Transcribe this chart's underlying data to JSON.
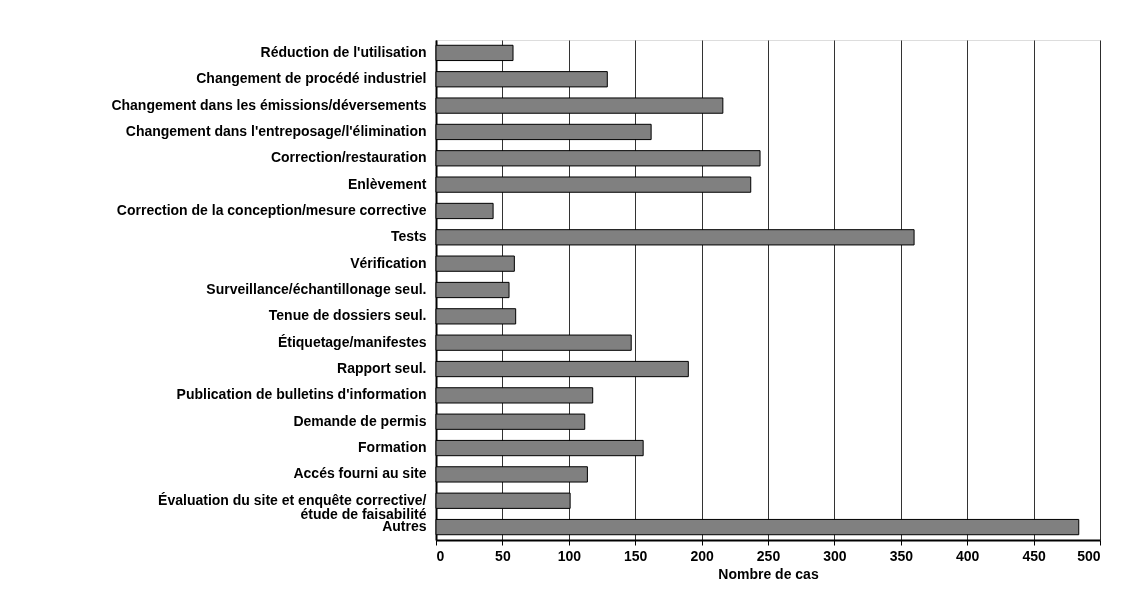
{
  "chart_data": {
    "type": "bar",
    "orientation": "horizontal",
    "xlabel": "Nombre de cas",
    "categories": [
      "Réduction de l'utilisation",
      "Changement de procédé industriel",
      "Changement dans les émissions/déversements",
      "Changement dans l'entreposage/l'élimination",
      "Correction/restauration",
      "Enlèvement",
      "Correction de la conception/mesure corrective",
      "Tests",
      "Vérification",
      "Surveillance/échantillonage seul.",
      "Tenue de dossiers seul.",
      "Étiquetage/manifestes",
      "Rapport seul.",
      "Publication de bulletins d'information",
      "Demande de permis",
      "Formation",
      "Accés fourni au site",
      "Évaluation du site et enquête corrective/\nétude de faisabilité",
      "Autres"
    ],
    "values": [
      58,
      129,
      216,
      162,
      244,
      237,
      43,
      360,
      59,
      55,
      60,
      147,
      190,
      118,
      112,
      156,
      114,
      101,
      484
    ],
    "color": "#808080",
    "xlim": [
      0,
      500
    ],
    "xticks": [
      0,
      50,
      100,
      150,
      200,
      250,
      300,
      350,
      400,
      450,
      500
    ],
    "grid": "x"
  }
}
